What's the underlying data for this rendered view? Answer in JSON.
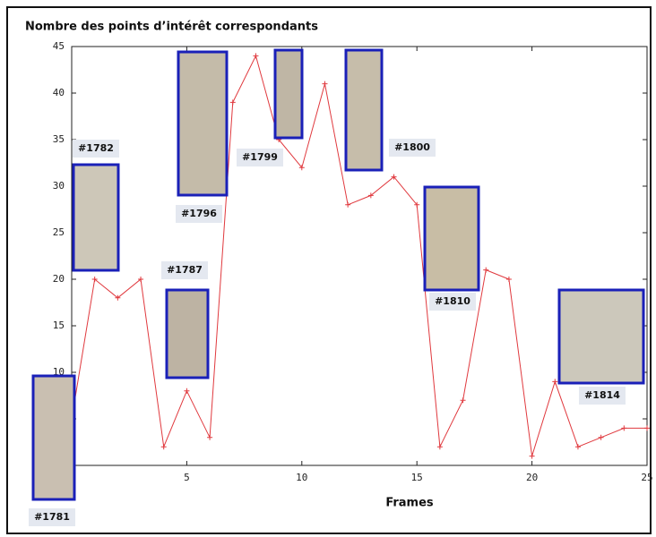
{
  "chart_data": {
    "type": "line",
    "title": "Nombre des points d’intérêt correspondants",
    "xlabel": "Frames",
    "x": [
      0,
      1,
      2,
      3,
      4,
      5,
      6,
      7,
      8,
      9,
      10,
      11,
      12,
      13,
      14,
      15,
      16,
      17,
      18,
      19,
      20,
      21,
      22,
      23,
      24,
      25
    ],
    "series": [
      {
        "color": "#e0393e",
        "values": [
          5,
          20,
          18,
          20,
          2,
          8,
          3,
          39,
          44,
          35,
          32,
          41,
          28,
          29,
          31,
          28,
          2,
          7,
          21,
          20,
          1,
          9,
          2,
          3,
          4,
          4
        ]
      }
    ],
    "xlim": [
      0,
      25
    ],
    "xticks": [
      5,
      10,
      15,
      20,
      25
    ],
    "ylim": [
      0,
      45
    ],
    "yticks": [
      5,
      10,
      15,
      20,
      25,
      30,
      35,
      40,
      45
    ],
    "annotations": [
      "#1781",
      "#1782",
      "#1787",
      "#1796",
      "#1799",
      "#1800",
      "#1810",
      "#1814"
    ]
  }
}
